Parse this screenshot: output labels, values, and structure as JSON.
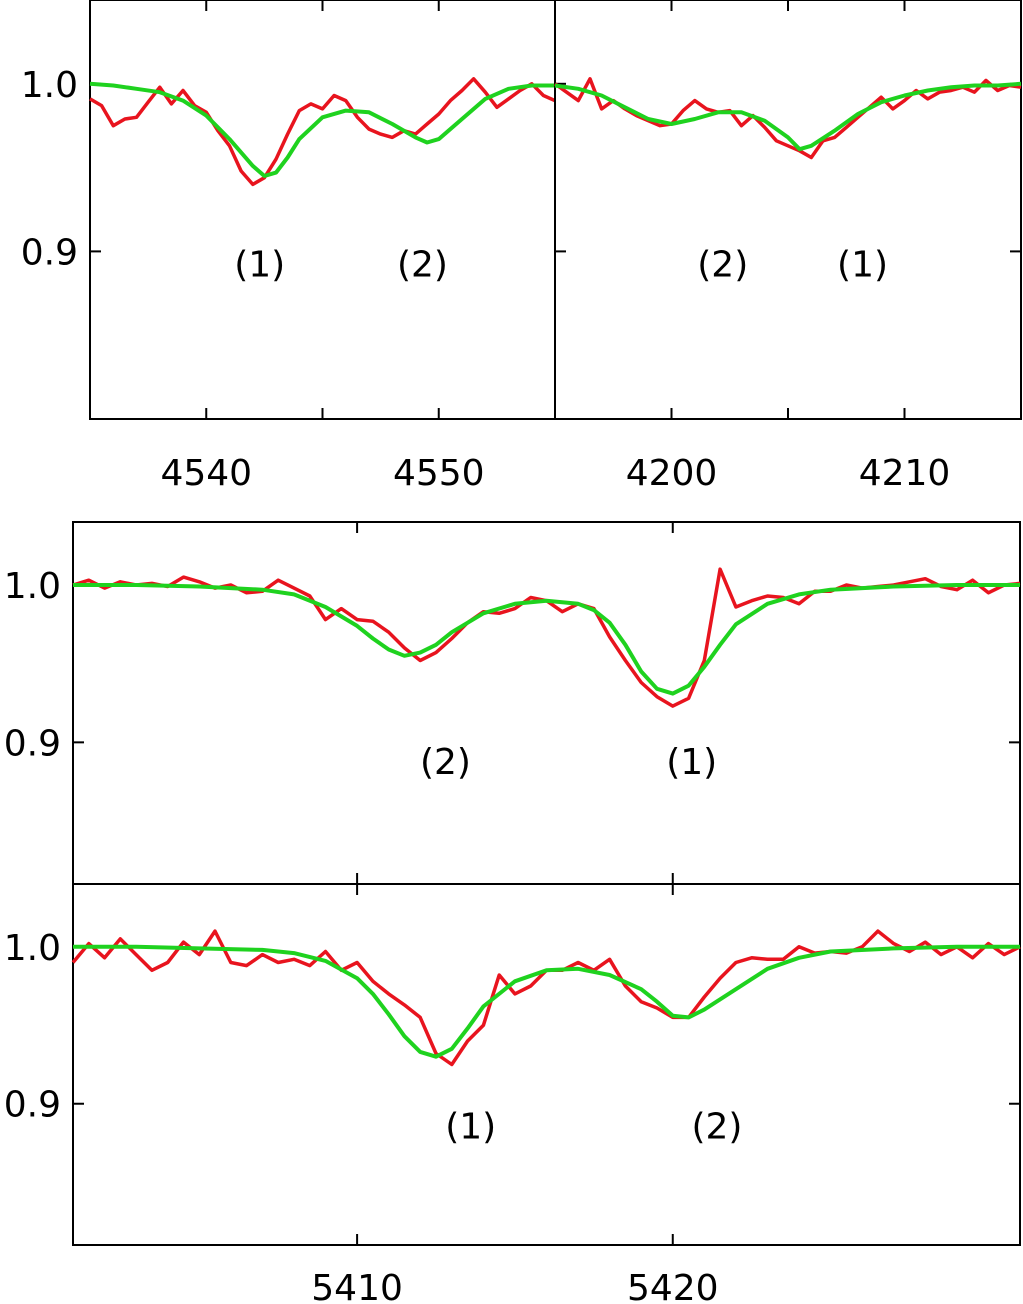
{
  "colors": {
    "observed": "#e8141e",
    "fit": "#1fd21f",
    "axes": "#000000"
  },
  "chart_data": [
    {
      "type": "line",
      "panel": "top-left",
      "xlim": [
        4535,
        4555
      ],
      "ylim": [
        0.8,
        1.05
      ],
      "xticks": [
        4540,
        4550
      ],
      "xtick_minor": [
        4545
      ],
      "yticks": [
        0.9,
        1.0
      ],
      "ytick_labels": [
        "0.9",
        "1.0"
      ],
      "series": [
        {
          "kind": "observed",
          "x": [
            4535,
            4535.5,
            4536,
            4536.5,
            4537,
            4537.5,
            4538,
            4538.5,
            4539,
            4539.5,
            4540,
            4540.5,
            4541,
            4541.5,
            4542,
            4542.5,
            4543,
            4543.5,
            4544,
            4544.5,
            4545,
            4545.5,
            4546,
            4546.5,
            4547,
            4547.5,
            4548,
            4548.5,
            4549,
            4549.5,
            4550,
            4550.5,
            4551,
            4551.5,
            4552,
            4552.5,
            4553,
            4553.5,
            4554,
            4554.5,
            4555
          ],
          "y": [
            0.991,
            0.987,
            0.975,
            0.979,
            0.98,
            0.989,
            0.998,
            0.988,
            0.996,
            0.987,
            0.983,
            0.972,
            0.963,
            0.948,
            0.94,
            0.944,
            0.955,
            0.97,
            0.984,
            0.988,
            0.985,
            0.993,
            0.99,
            0.98,
            0.973,
            0.97,
            0.968,
            0.972,
            0.97,
            0.976,
            0.982,
            0.99,
            0.996,
            1.003,
            0.995,
            0.986,
            0.991,
            0.996,
            1.0,
            0.993,
            0.99
          ]
        },
        {
          "kind": "fit",
          "x": [
            4535,
            4536,
            4537,
            4538,
            4539,
            4540,
            4541,
            4542,
            4542.5,
            4543,
            4543.5,
            4544,
            4545,
            4546,
            4547,
            4548,
            4549,
            4549.5,
            4550,
            4551,
            4552,
            4553,
            4554,
            4555
          ],
          "y": [
            1.0,
            0.999,
            0.997,
            0.995,
            0.99,
            0.981,
            0.967,
            0.951,
            0.945,
            0.947,
            0.956,
            0.967,
            0.98,
            0.984,
            0.983,
            0.976,
            0.968,
            0.965,
            0.967,
            0.979,
            0.991,
            0.997,
            0.999,
            0.999
          ]
        }
      ],
      "annotations": [
        {
          "text": "(1)",
          "x": 4542.3,
          "y": 0.885
        },
        {
          "text": "(2)",
          "x": 4549.3,
          "y": 0.885
        }
      ]
    },
    {
      "type": "line",
      "panel": "top-right",
      "xlim": [
        4195,
        4215
      ],
      "ylim": [
        0.8,
        1.05
      ],
      "xticks": [
        4200,
        4210
      ],
      "xtick_minor": [
        4205
      ],
      "yticks": [
        0.9,
        1.0
      ],
      "ytick_labels": [
        "",
        ""
      ],
      "series": [
        {
          "kind": "observed",
          "x": [
            4195,
            4195.5,
            4196,
            4196.5,
            4197,
            4197.5,
            4198,
            4198.5,
            4199,
            4199.5,
            4200,
            4200.5,
            4201,
            4201.5,
            4202,
            4202.5,
            4203,
            4203.5,
            4204,
            4204.5,
            4205,
            4205.5,
            4206,
            4206.5,
            4207,
            4207.5,
            4208,
            4208.5,
            4209,
            4209.5,
            4210,
            4210.5,
            4211,
            4211.5,
            4212,
            4212.5,
            4213,
            4213.5,
            4214,
            4214.5,
            4215
          ],
          "y": [
            1.0,
            0.995,
            0.99,
            1.003,
            0.985,
            0.99,
            0.985,
            0.981,
            0.978,
            0.975,
            0.976,
            0.984,
            0.99,
            0.985,
            0.983,
            0.984,
            0.975,
            0.981,
            0.974,
            0.966,
            0.963,
            0.96,
            0.956,
            0.966,
            0.968,
            0.974,
            0.98,
            0.986,
            0.992,
            0.985,
            0.99,
            0.996,
            0.991,
            0.995,
            0.996,
            0.998,
            0.995,
            1.002,
            0.996,
            0.999,
            0.998
          ]
        },
        {
          "kind": "fit",
          "x": [
            4195,
            4196,
            4197,
            4198,
            4199,
            4200,
            4201,
            4202,
            4203,
            4204,
            4205,
            4205.5,
            4206,
            4207,
            4208,
            4209,
            4210,
            4211,
            4212,
            4213,
            4214,
            4215
          ],
          "y": [
            0.999,
            0.997,
            0.993,
            0.986,
            0.979,
            0.976,
            0.979,
            0.983,
            0.983,
            0.978,
            0.968,
            0.961,
            0.963,
            0.972,
            0.982,
            0.989,
            0.993,
            0.996,
            0.998,
            0.999,
            0.999,
            1.0
          ]
        }
      ],
      "annotations": [
        {
          "text": "(2)",
          "x": 4202.2,
          "y": 0.885
        },
        {
          "text": "(1)",
          "x": 4208.2,
          "y": 0.885
        }
      ]
    },
    {
      "type": "line",
      "panel": "bottom-upper",
      "xlim": [
        5401,
        5431
      ],
      "ylim": [
        0.81,
        1.04
      ],
      "xticks": [
        5410,
        5420
      ],
      "yticks": [
        0.9,
        1.0
      ],
      "ytick_labels": [
        "0.9",
        "1.0"
      ],
      "series": [
        {
          "kind": "observed",
          "x": [
            5401,
            5401.5,
            5402,
            5402.5,
            5403,
            5403.5,
            5404,
            5404.5,
            5405,
            5405.5,
            5406,
            5406.5,
            5407,
            5407.5,
            5408,
            5408.5,
            5409,
            5409.5,
            5410,
            5410.5,
            5411,
            5411.5,
            5412,
            5412.5,
            5413,
            5413.5,
            5414,
            5414.5,
            5415,
            5415.5,
            5416,
            5416.5,
            5417,
            5417.5,
            5418,
            5418.5,
            5419,
            5419.5,
            5420,
            5420.5,
            5421,
            5421.5,
            5422,
            5422.5,
            5423,
            5423.5,
            5424,
            5424.5,
            5425,
            5425.5,
            5426,
            5426.5,
            5427,
            5427.5,
            5428,
            5428.5,
            5429,
            5429.5,
            5430,
            5430.5,
            5431
          ],
          "y": [
            1.0,
            1.003,
            0.998,
            1.002,
            1.0,
            1.001,
            0.999,
            1.005,
            1.002,
            0.998,
            1.0,
            0.995,
            0.996,
            1.003,
            0.998,
            0.993,
            0.978,
            0.985,
            0.978,
            0.977,
            0.97,
            0.96,
            0.952,
            0.957,
            0.966,
            0.976,
            0.983,
            0.982,
            0.985,
            0.992,
            0.99,
            0.983,
            0.988,
            0.985,
            0.967,
            0.952,
            0.938,
            0.929,
            0.923,
            0.928,
            0.952,
            1.01,
            0.986,
            0.99,
            0.993,
            0.992,
            0.988,
            0.996,
            0.996,
            1.0,
            0.998,
            0.999,
            1.0,
            1.002,
            1.004,
            0.999,
            0.997,
            1.003,
            0.995,
            1.0,
            1.001
          ]
        },
        {
          "kind": "fit",
          "x": [
            5401,
            5403,
            5405,
            5407,
            5408,
            5409,
            5410,
            5410.5,
            5411,
            5411.5,
            5412,
            5412.5,
            5413,
            5414,
            5415,
            5416,
            5417,
            5417.5,
            5418,
            5418.5,
            5419,
            5419.5,
            5420,
            5420.5,
            5421,
            5421.5,
            5422,
            5423,
            5424,
            5425,
            5427,
            5429,
            5431
          ],
          "y": [
            1.0,
            1.0,
            0.999,
            0.997,
            0.994,
            0.986,
            0.974,
            0.966,
            0.959,
            0.955,
            0.957,
            0.962,
            0.97,
            0.982,
            0.988,
            0.99,
            0.988,
            0.984,
            0.976,
            0.962,
            0.945,
            0.934,
            0.931,
            0.936,
            0.948,
            0.962,
            0.975,
            0.988,
            0.994,
            0.997,
            0.999,
            1.0,
            1.0
          ]
        }
      ],
      "annotations": [
        {
          "text": "(2)",
          "x": 5412.8,
          "y": 0.88
        },
        {
          "text": "(1)",
          "x": 5420.6,
          "y": 0.88
        }
      ]
    },
    {
      "type": "line",
      "panel": "bottom-lower",
      "xlim": [
        5401,
        5431
      ],
      "ylim": [
        0.81,
        1.04
      ],
      "xticks": [
        5410,
        5420
      ],
      "xtick_labels": [
        "5410",
        "5420"
      ],
      "yticks": [
        0.9,
        1.0
      ],
      "ytick_labels": [
        "0.9",
        "1.0"
      ],
      "series": [
        {
          "kind": "observed",
          "x": [
            5401,
            5401.5,
            5402,
            5402.5,
            5403,
            5403.5,
            5404,
            5404.5,
            5405,
            5405.5,
            5406,
            5406.5,
            5407,
            5407.5,
            5408,
            5408.5,
            5409,
            5409.5,
            5410,
            5410.5,
            5411,
            5411.5,
            5412,
            5412.5,
            5413,
            5413.5,
            5414,
            5414.5,
            5415,
            5415.5,
            5416,
            5416.5,
            5417,
            5417.5,
            5418,
            5418.5,
            5419,
            5419.5,
            5420,
            5420.5,
            5421,
            5421.5,
            5422,
            5422.5,
            5423,
            5423.5,
            5424,
            5424.5,
            5425,
            5425.5,
            5426,
            5426.5,
            5427,
            5427.5,
            5428,
            5428.5,
            5429,
            5429.5,
            5430,
            5430.5,
            5431
          ],
          "y": [
            0.99,
            1.002,
            0.993,
            1.005,
            0.995,
            0.985,
            0.99,
            1.003,
            0.995,
            1.01,
            0.99,
            0.988,
            0.995,
            0.99,
            0.992,
            0.988,
            0.997,
            0.985,
            0.99,
            0.978,
            0.97,
            0.963,
            0.955,
            0.932,
            0.925,
            0.94,
            0.95,
            0.982,
            0.97,
            0.975,
            0.985,
            0.985,
            0.99,
            0.985,
            0.992,
            0.975,
            0.965,
            0.961,
            0.955,
            0.955,
            0.968,
            0.98,
            0.99,
            0.993,
            0.992,
            0.992,
            1.0,
            0.996,
            0.997,
            0.996,
            1.0,
            1.01,
            1.002,
            0.997,
            1.003,
            0.995,
            1.0,
            0.993,
            1.002,
            0.995,
            1.0
          ]
        },
        {
          "kind": "fit",
          "x": [
            5401,
            5403,
            5405,
            5407,
            5408,
            5409,
            5410,
            5410.5,
            5411,
            5411.5,
            5412,
            5412.5,
            5413,
            5413.5,
            5414,
            5415,
            5416,
            5417,
            5418,
            5419,
            5419.5,
            5420,
            5420.5,
            5421,
            5422,
            5423,
            5424,
            5425,
            5427,
            5429,
            5431
          ],
          "y": [
            1.0,
            1.0,
            0.999,
            0.998,
            0.996,
            0.991,
            0.98,
            0.97,
            0.957,
            0.943,
            0.933,
            0.93,
            0.935,
            0.948,
            0.962,
            0.978,
            0.985,
            0.986,
            0.982,
            0.973,
            0.965,
            0.956,
            0.955,
            0.96,
            0.973,
            0.986,
            0.993,
            0.997,
            0.999,
            1.0,
            1.0
          ]
        }
      ],
      "annotations": [
        {
          "text": "(1)",
          "x": 5413.6,
          "y": 0.878
        },
        {
          "text": "(2)",
          "x": 5421.4,
          "y": 0.878
        }
      ]
    }
  ]
}
